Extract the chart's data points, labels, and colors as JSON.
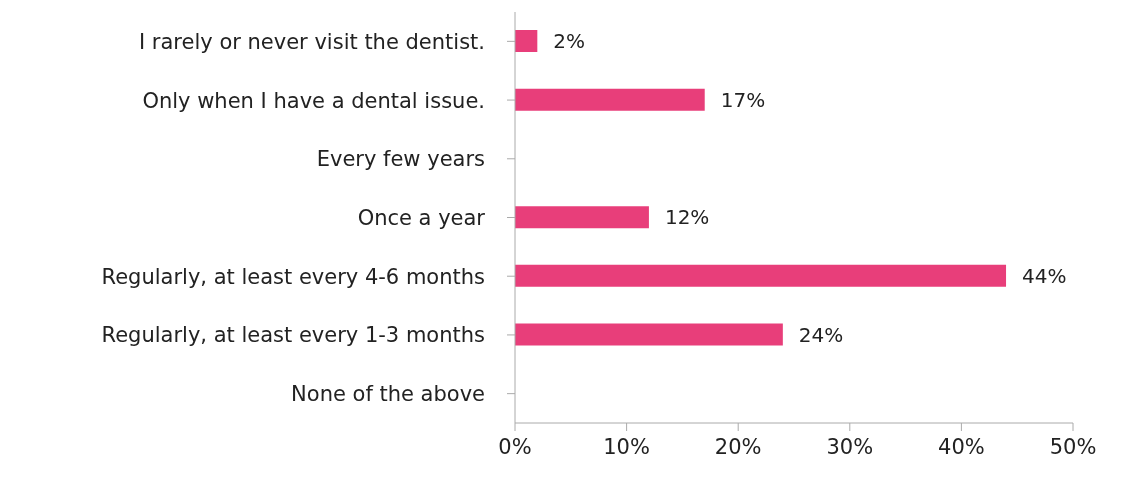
{
  "chart_data": {
    "type": "bar",
    "orientation": "horizontal",
    "categories": [
      "I rarely or never visit the dentist.",
      "Only when I have a dental issue.",
      "Every few years",
      "Once a year",
      "Regularly, at least every 4-6 months",
      "Regularly, at least every 1-3 months",
      "None of the above"
    ],
    "values": [
      2,
      17,
      null,
      12,
      44,
      24,
      null
    ],
    "value_labels": [
      "2%",
      "17%",
      null,
      "12%",
      "44%",
      "24%",
      null
    ],
    "color": "#e83e7a",
    "xlim": [
      0,
      50
    ],
    "xticks": [
      {
        "value": 0,
        "label": "0%"
      },
      {
        "value": 10,
        "label": "10%"
      },
      {
        "value": 20,
        "label": "20%"
      },
      {
        "value": 30,
        "label": "30%"
      },
      {
        "value": 40,
        "label": "40%"
      },
      {
        "value": 50,
        "label": "50%"
      }
    ]
  }
}
